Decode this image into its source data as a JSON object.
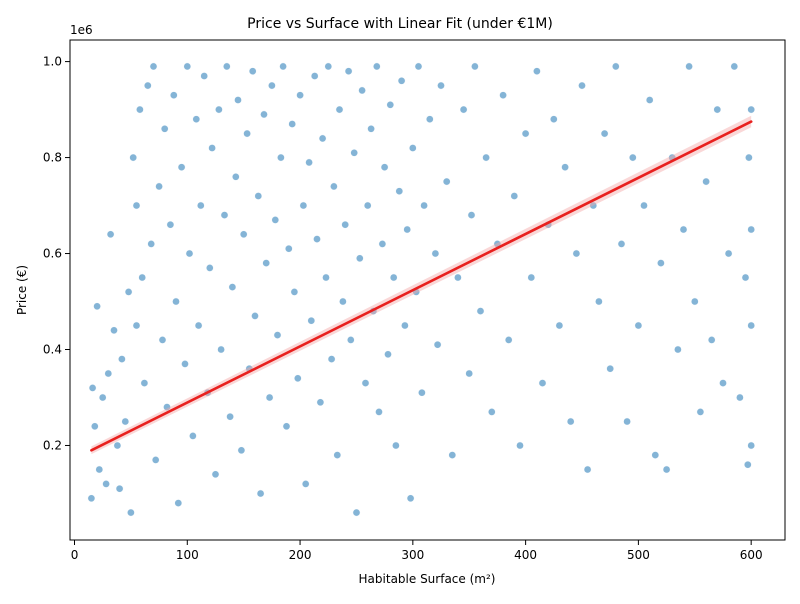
{
  "chart_data": {
    "type": "scatter",
    "title": "Price vs Surface with Linear Fit (under €1M)",
    "xlabel": "Habitable Surface (m²)",
    "ylabel": "Price (€)",
    "y_offset_text": "1e6",
    "xlim": [
      -4,
      630
    ],
    "ylim": [
      0.003,
      1.045
    ],
    "y_scale_note": "values in units of 1e6 €",
    "x_ticks": [
      0,
      100,
      200,
      300,
      400,
      500,
      600
    ],
    "x_tick_labels": [
      "0",
      "100",
      "200",
      "300",
      "400",
      "500",
      "600"
    ],
    "y_ticks": [
      0.2,
      0.4,
      0.6,
      0.8,
      1.0
    ],
    "y_tick_labels": [
      "0.2",
      "0.4",
      "0.6",
      "0.8",
      "1.0"
    ],
    "grid": false,
    "legend": "none",
    "colors": {
      "points": "#1f77b4",
      "fit_line": "#e8201e",
      "ci_band": "#f4a6a6"
    },
    "point_alpha": 0.55,
    "series": [
      {
        "kind": "points",
        "note": "approximate sample of observed points (price in 1e6 €)",
        "points": [
          [
            15,
            0.09
          ],
          [
            16,
            0.32
          ],
          [
            18,
            0.24
          ],
          [
            20,
            0.49
          ],
          [
            22,
            0.15
          ],
          [
            25,
            0.3
          ],
          [
            28,
            0.12
          ],
          [
            30,
            0.35
          ],
          [
            32,
            0.64
          ],
          [
            35,
            0.44
          ],
          [
            38,
            0.2
          ],
          [
            40,
            0.11
          ],
          [
            42,
            0.38
          ],
          [
            45,
            0.25
          ],
          [
            48,
            0.52
          ],
          [
            50,
            0.06
          ],
          [
            52,
            0.8
          ],
          [
            55,
            0.7
          ],
          [
            55,
            0.45
          ],
          [
            58,
            0.9
          ],
          [
            60,
            0.55
          ],
          [
            62,
            0.33
          ],
          [
            65,
            0.95
          ],
          [
            68,
            0.62
          ],
          [
            70,
            0.99
          ],
          [
            72,
            0.17
          ],
          [
            75,
            0.74
          ],
          [
            78,
            0.42
          ],
          [
            80,
            0.86
          ],
          [
            82,
            0.28
          ],
          [
            85,
            0.66
          ],
          [
            88,
            0.93
          ],
          [
            90,
            0.5
          ],
          [
            92,
            0.08
          ],
          [
            95,
            0.78
          ],
          [
            98,
            0.37
          ],
          [
            100,
            0.99
          ],
          [
            102,
            0.6
          ],
          [
            105,
            0.22
          ],
          [
            108,
            0.88
          ],
          [
            110,
            0.45
          ],
          [
            112,
            0.7
          ],
          [
            115,
            0.97
          ],
          [
            118,
            0.31
          ],
          [
            120,
            0.57
          ],
          [
            122,
            0.82
          ],
          [
            125,
            0.14
          ],
          [
            128,
            0.9
          ],
          [
            130,
            0.4
          ],
          [
            133,
            0.68
          ],
          [
            135,
            0.99
          ],
          [
            138,
            0.26
          ],
          [
            140,
            0.53
          ],
          [
            143,
            0.76
          ],
          [
            145,
            0.92
          ],
          [
            148,
            0.19
          ],
          [
            150,
            0.64
          ],
          [
            153,
            0.85
          ],
          [
            155,
            0.36
          ],
          [
            158,
            0.98
          ],
          [
            160,
            0.47
          ],
          [
            163,
            0.72
          ],
          [
            165,
            0.1
          ],
          [
            168,
            0.89
          ],
          [
            170,
            0.58
          ],
          [
            173,
            0.3
          ],
          [
            175,
            0.95
          ],
          [
            178,
            0.67
          ],
          [
            180,
            0.43
          ],
          [
            183,
            0.8
          ],
          [
            185,
            0.99
          ],
          [
            188,
            0.24
          ],
          [
            190,
            0.61
          ],
          [
            193,
            0.87
          ],
          [
            195,
            0.52
          ],
          [
            198,
            0.34
          ],
          [
            200,
            0.93
          ],
          [
            203,
            0.7
          ],
          [
            205,
            0.12
          ],
          [
            208,
            0.79
          ],
          [
            210,
            0.46
          ],
          [
            213,
            0.97
          ],
          [
            215,
            0.63
          ],
          [
            218,
            0.29
          ],
          [
            220,
            0.84
          ],
          [
            223,
            0.55
          ],
          [
            225,
            0.99
          ],
          [
            228,
            0.38
          ],
          [
            230,
            0.74
          ],
          [
            233,
            0.18
          ],
          [
            235,
            0.9
          ],
          [
            238,
            0.5
          ],
          [
            240,
            0.66
          ],
          [
            243,
            0.98
          ],
          [
            245,
            0.42
          ],
          [
            248,
            0.81
          ],
          [
            250,
            0.06
          ],
          [
            253,
            0.59
          ],
          [
            255,
            0.94
          ],
          [
            258,
            0.33
          ],
          [
            260,
            0.7
          ],
          [
            263,
            0.86
          ],
          [
            265,
            0.48
          ],
          [
            268,
            0.99
          ],
          [
            270,
            0.27
          ],
          [
            273,
            0.62
          ],
          [
            275,
            0.78
          ],
          [
            278,
            0.39
          ],
          [
            280,
            0.91
          ],
          [
            283,
            0.55
          ],
          [
            285,
            0.2
          ],
          [
            288,
            0.73
          ],
          [
            290,
            0.96
          ],
          [
            293,
            0.45
          ],
          [
            295,
            0.65
          ],
          [
            298,
            0.09
          ],
          [
            300,
            0.82
          ],
          [
            303,
            0.52
          ],
          [
            305,
            0.99
          ],
          [
            308,
            0.31
          ],
          [
            310,
            0.7
          ],
          [
            315,
            0.88
          ],
          [
            320,
            0.6
          ],
          [
            322,
            0.41
          ],
          [
            325,
            0.95
          ],
          [
            330,
            0.75
          ],
          [
            335,
            0.18
          ],
          [
            340,
            0.55
          ],
          [
            345,
            0.9
          ],
          [
            350,
            0.35
          ],
          [
            352,
            0.68
          ],
          [
            355,
            0.99
          ],
          [
            360,
            0.48
          ],
          [
            365,
            0.8
          ],
          [
            370,
            0.27
          ],
          [
            375,
            0.62
          ],
          [
            380,
            0.93
          ],
          [
            385,
            0.42
          ],
          [
            390,
            0.72
          ],
          [
            395,
            0.2
          ],
          [
            400,
            0.85
          ],
          [
            405,
            0.55
          ],
          [
            410,
            0.98
          ],
          [
            415,
            0.33
          ],
          [
            420,
            0.66
          ],
          [
            425,
            0.88
          ],
          [
            430,
            0.45
          ],
          [
            435,
            0.78
          ],
          [
            440,
            0.25
          ],
          [
            445,
            0.6
          ],
          [
            450,
            0.95
          ],
          [
            455,
            0.15
          ],
          [
            460,
            0.7
          ],
          [
            465,
            0.5
          ],
          [
            470,
            0.85
          ],
          [
            475,
            0.36
          ],
          [
            480,
            0.99
          ],
          [
            485,
            0.62
          ],
          [
            490,
            0.25
          ],
          [
            495,
            0.8
          ],
          [
            500,
            0.45
          ],
          [
            505,
            0.7
          ],
          [
            510,
            0.92
          ],
          [
            515,
            0.18
          ],
          [
            520,
            0.58
          ],
          [
            525,
            0.15
          ],
          [
            530,
            0.8
          ],
          [
            535,
            0.4
          ],
          [
            540,
            0.65
          ],
          [
            545,
            0.99
          ],
          [
            550,
            0.5
          ],
          [
            555,
            0.27
          ],
          [
            560,
            0.75
          ],
          [
            565,
            0.42
          ],
          [
            570,
            0.9
          ],
          [
            575,
            0.33
          ],
          [
            580,
            0.6
          ],
          [
            585,
            0.99
          ],
          [
            590,
            0.3
          ],
          [
            595,
            0.55
          ],
          [
            597,
            0.16
          ],
          [
            598,
            0.8
          ],
          [
            600,
            0.2
          ],
          [
            600,
            0.45
          ],
          [
            600,
            0.9
          ],
          [
            600,
            0.65
          ]
        ]
      },
      {
        "kind": "fit_line",
        "x": [
          15,
          600
        ],
        "y": [
          0.19,
          0.875
        ]
      }
    ]
  }
}
